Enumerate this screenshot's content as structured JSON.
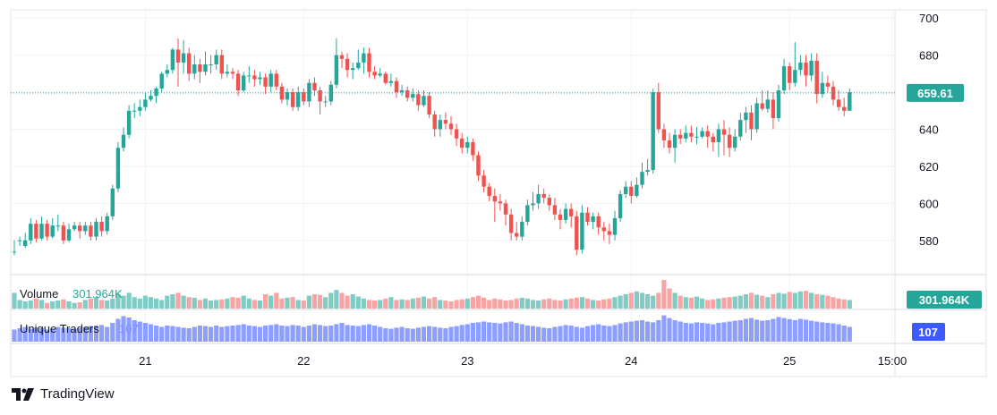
{
  "chart_data": {
    "type": "candlestick",
    "price_axis": {
      "ticks": [
        580,
        600,
        620,
        640,
        660,
        680,
        700
      ],
      "ylim": [
        563,
        703
      ]
    },
    "time_axis": {
      "ticks": [
        "21",
        "22",
        "23",
        "24",
        "25",
        "15:00"
      ]
    },
    "last_price": {
      "label": "659.61",
      "value": 659.61,
      "color": "#26a69a"
    },
    "colors": {
      "up": "#26a69a",
      "down": "#ef5350",
      "volume_up": "#80cbc4",
      "volume_down": "#f7a4a4",
      "traders": "#8c9eff",
      "traders_badge": "#3d5afe"
    },
    "candles": [
      [
        574,
        574,
        580,
        572
      ],
      [
        580,
        580,
        582,
        577
      ],
      [
        577,
        580,
        584,
        576
      ],
      [
        580,
        589,
        592,
        578
      ],
      [
        589,
        581,
        591,
        579
      ],
      [
        581,
        589,
        593,
        580
      ],
      [
        589,
        582,
        591,
        580
      ],
      [
        582,
        588,
        592,
        581
      ],
      [
        588,
        588,
        594,
        585
      ],
      [
        588,
        580,
        590,
        578
      ],
      [
        580,
        586,
        589,
        579
      ],
      [
        586,
        588,
        590,
        585
      ],
      [
        588,
        585,
        590,
        581
      ],
      [
        585,
        588,
        590,
        583
      ],
      [
        588,
        582,
        590,
        580
      ],
      [
        582,
        590,
        592,
        580
      ],
      [
        590,
        585,
        593,
        582
      ],
      [
        585,
        593,
        595,
        583
      ],
      [
        593,
        608,
        610,
        591
      ],
      [
        608,
        630,
        633,
        606
      ],
      [
        630,
        637,
        641,
        628
      ],
      [
        637,
        650,
        653,
        635
      ],
      [
        650,
        650,
        654,
        646
      ],
      [
        650,
        652,
        656,
        647
      ],
      [
        652,
        656,
        660,
        650
      ],
      [
        656,
        658,
        661,
        655
      ],
      [
        658,
        662,
        663,
        654
      ],
      [
        662,
        670,
        671,
        660
      ],
      [
        670,
        672,
        675,
        668
      ],
      [
        672,
        683,
        684,
        670
      ],
      [
        683,
        676,
        689,
        663
      ],
      [
        676,
        681,
        688,
        670
      ],
      [
        681,
        670,
        684,
        666
      ],
      [
        670,
        675,
        680,
        667
      ],
      [
        675,
        671,
        678,
        665
      ],
      [
        671,
        675,
        682,
        669
      ],
      [
        675,
        675,
        680,
        670
      ],
      [
        675,
        680,
        683,
        672
      ],
      [
        680,
        670,
        683,
        667
      ],
      [
        670,
        671,
        675,
        668
      ],
      [
        671,
        670,
        673,
        667
      ],
      [
        670,
        661,
        672,
        658
      ],
      [
        661,
        669,
        671,
        660
      ],
      [
        669,
        669,
        674,
        665
      ],
      [
        669,
        667,
        672,
        663
      ],
      [
        667,
        668,
        671,
        664
      ],
      [
        668,
        663,
        670,
        659
      ],
      [
        663,
        670,
        672,
        660
      ],
      [
        670,
        663,
        672,
        661
      ],
      [
        663,
        656,
        665,
        654
      ],
      [
        656,
        660,
        662,
        653
      ],
      [
        660,
        652,
        662,
        650
      ],
      [
        652,
        660,
        663,
        650
      ],
      [
        660,
        655,
        662,
        653
      ],
      [
        655,
        665,
        667,
        652
      ],
      [
        665,
        661,
        668,
        658
      ],
      [
        661,
        655,
        663,
        648
      ],
      [
        655,
        655,
        658,
        652
      ],
      [
        655,
        664,
        666,
        653
      ],
      [
        664,
        680,
        689,
        662
      ],
      [
        680,
        678,
        682,
        673
      ],
      [
        678,
        672,
        681,
        668
      ],
      [
        672,
        673,
        676,
        667
      ],
      [
        673,
        676,
        683,
        672
      ],
      [
        676,
        681,
        684,
        670
      ],
      [
        681,
        671,
        684,
        668
      ],
      [
        671,
        669,
        674,
        667
      ],
      [
        669,
        670,
        673,
        668
      ],
      [
        670,
        665,
        671,
        664
      ],
      [
        665,
        666,
        670,
        663
      ],
      [
        666,
        660,
        668,
        657
      ],
      [
        660,
        661,
        664,
        658
      ],
      [
        661,
        657,
        663,
        655
      ],
      [
        657,
        659,
        662,
        655
      ],
      [
        659,
        653,
        661,
        650
      ],
      [
        653,
        658,
        661,
        652
      ],
      [
        658,
        648,
        660,
        646
      ],
      [
        648,
        640,
        650,
        636
      ],
      [
        640,
        645,
        648,
        636
      ],
      [
        645,
        643,
        649,
        640
      ],
      [
        643,
        640,
        647,
        637
      ],
      [
        640,
        635,
        643,
        631
      ],
      [
        635,
        630,
        638,
        627
      ],
      [
        630,
        633,
        636,
        627
      ],
      [
        633,
        626,
        635,
        623
      ],
      [
        626,
        615,
        628,
        612
      ],
      [
        615,
        609,
        618,
        606
      ],
      [
        609,
        604,
        611,
        601
      ],
      [
        604,
        601,
        608,
        590
      ],
      [
        601,
        600,
        605,
        596
      ],
      [
        600,
        594,
        602,
        588
      ],
      [
        594,
        584,
        597,
        580
      ],
      [
        584,
        582,
        590,
        580
      ],
      [
        582,
        590,
        593,
        580
      ],
      [
        590,
        599,
        602,
        588
      ],
      [
        599,
        600,
        606,
        596
      ],
      [
        600,
        605,
        610,
        597
      ],
      [
        605,
        603,
        608,
        600
      ],
      [
        603,
        599,
        605,
        596
      ],
      [
        599,
        594,
        603,
        591
      ],
      [
        594,
        591,
        597,
        586
      ],
      [
        591,
        597,
        600,
        589
      ],
      [
        597,
        593,
        600,
        587
      ],
      [
        593,
        575,
        596,
        572
      ],
      [
        575,
        595,
        599,
        573
      ],
      [
        595,
        590,
        598,
        588
      ],
      [
        590,
        593,
        595,
        586
      ],
      [
        593,
        587,
        595,
        583
      ],
      [
        587,
        585,
        590,
        580
      ],
      [
        585,
        583,
        589,
        578
      ],
      [
        583,
        592,
        596,
        580
      ],
      [
        592,
        605,
        607,
        590
      ],
      [
        605,
        609,
        612,
        603
      ],
      [
        609,
        604,
        612,
        600
      ],
      [
        604,
        610,
        614,
        603
      ],
      [
        610,
        617,
        622,
        608
      ],
      [
        617,
        618,
        624,
        615
      ],
      [
        618,
        660,
        662,
        616
      ],
      [
        660,
        640,
        665,
        638
      ],
      [
        640,
        634,
        643,
        630
      ],
      [
        634,
        630,
        638,
        627
      ],
      [
        630,
        637,
        640,
        622
      ],
      [
        637,
        635,
        640,
        632
      ],
      [
        635,
        638,
        642,
        633
      ],
      [
        638,
        636,
        642,
        633
      ],
      [
        636,
        636,
        641,
        632
      ],
      [
        636,
        639,
        641,
        635
      ],
      [
        639,
        636,
        642,
        630
      ],
      [
        636,
        633,
        638,
        628
      ],
      [
        633,
        640,
        643,
        625
      ],
      [
        640,
        637,
        645,
        626
      ],
      [
        637,
        630,
        641,
        625
      ],
      [
        630,
        636,
        640,
        628
      ],
      [
        636,
        645,
        649,
        634
      ],
      [
        645,
        649,
        652,
        638
      ],
      [
        649,
        640,
        653,
        634
      ],
      [
        640,
        654,
        657,
        638
      ],
      [
        654,
        651,
        661,
        650
      ],
      [
        651,
        656,
        661,
        649
      ],
      [
        656,
        646,
        660,
        640
      ],
      [
        646,
        661,
        664,
        644
      ],
      [
        661,
        674,
        678,
        659
      ],
      [
        674,
        665,
        676,
        661
      ],
      [
        665,
        672,
        687,
        663
      ],
      [
        672,
        676,
        680,
        669
      ],
      [
        676,
        669,
        680,
        663
      ],
      [
        669,
        677,
        681,
        666
      ],
      [
        677,
        659,
        681,
        654
      ],
      [
        659,
        665,
        671,
        657
      ],
      [
        665,
        663,
        669,
        660
      ],
      [
        663,
        656,
        666,
        653
      ],
      [
        656,
        652,
        661,
        650
      ],
      [
        652,
        650,
        657,
        647
      ],
      [
        650,
        660,
        662,
        650
      ]
    ],
    "volume": [
      0.55,
      0.3,
      0.25,
      0.28,
      0.35,
      0.3,
      0.2,
      0.25,
      0.28,
      0.32,
      0.25,
      0.2,
      0.22,
      0.3,
      0.35,
      0.4,
      0.3,
      0.28,
      0.35,
      0.5,
      0.45,
      0.55,
      0.4,
      0.35,
      0.45,
      0.4,
      0.35,
      0.3,
      0.45,
      0.5,
      0.55,
      0.45,
      0.4,
      0.38,
      0.3,
      0.35,
      0.28,
      0.3,
      0.32,
      0.35,
      0.4,
      0.38,
      0.45,
      0.35,
      0.3,
      0.28,
      0.5,
      0.45,
      0.55,
      0.35,
      0.38,
      0.4,
      0.3,
      0.28,
      0.45,
      0.5,
      0.48,
      0.4,
      0.55,
      0.65,
      0.55,
      0.45,
      0.5,
      0.42,
      0.35,
      0.3,
      0.28,
      0.3,
      0.35,
      0.4,
      0.3,
      0.32,
      0.3,
      0.35,
      0.38,
      0.42,
      0.35,
      0.4,
      0.3,
      0.28,
      0.25,
      0.3,
      0.32,
      0.35,
      0.4,
      0.45,
      0.38,
      0.3,
      0.35,
      0.32,
      0.28,
      0.3,
      0.35,
      0.38,
      0.35,
      0.3,
      0.28,
      0.32,
      0.35,
      0.3,
      0.28,
      0.32,
      0.35,
      0.38,
      0.4,
      0.35,
      0.3,
      0.28,
      0.32,
      0.35,
      0.4,
      0.45,
      0.5,
      0.55,
      0.6,
      0.55,
      0.5,
      0.45,
      0.55,
      1.0,
      0.7,
      0.55,
      0.45,
      0.4,
      0.38,
      0.42,
      0.35,
      0.3,
      0.32,
      0.35,
      0.38,
      0.4,
      0.42,
      0.45,
      0.5,
      0.55,
      0.48,
      0.45,
      0.4,
      0.5,
      0.55,
      0.52,
      0.58,
      0.55,
      0.6,
      0.62,
      0.55,
      0.5,
      0.48,
      0.45,
      0.4,
      0.35,
      0.32,
      0.3
    ],
    "volume_label": "Volume",
    "volume_value": "301.964K",
    "traders": [
      0.45,
      0.5,
      0.55,
      0.48,
      0.52,
      0.5,
      0.45,
      0.48,
      0.55,
      0.52,
      0.5,
      0.48,
      0.5,
      0.55,
      0.58,
      0.6,
      0.62,
      0.55,
      0.7,
      0.85,
      0.95,
      0.9,
      0.8,
      0.75,
      0.7,
      0.65,
      0.6,
      0.55,
      0.6,
      0.58,
      0.55,
      0.52,
      0.5,
      0.55,
      0.6,
      0.58,
      0.55,
      0.6,
      0.55,
      0.58,
      0.6,
      0.62,
      0.65,
      0.6,
      0.58,
      0.55,
      0.6,
      0.62,
      0.65,
      0.6,
      0.58,
      0.62,
      0.6,
      0.55,
      0.6,
      0.65,
      0.62,
      0.58,
      0.6,
      0.65,
      0.7,
      0.62,
      0.6,
      0.58,
      0.62,
      0.65,
      0.6,
      0.55,
      0.5,
      0.48,
      0.52,
      0.55,
      0.5,
      0.48,
      0.52,
      0.55,
      0.58,
      0.55,
      0.52,
      0.5,
      0.55,
      0.58,
      0.62,
      0.65,
      0.7,
      0.72,
      0.75,
      0.72,
      0.7,
      0.68,
      0.72,
      0.75,
      0.7,
      0.65,
      0.6,
      0.58,
      0.55,
      0.52,
      0.5,
      0.55,
      0.58,
      0.62,
      0.6,
      0.55,
      0.52,
      0.58,
      0.62,
      0.65,
      0.6,
      0.58,
      0.62,
      0.68,
      0.72,
      0.75,
      0.78,
      0.8,
      0.75,
      0.72,
      0.8,
      0.98,
      0.88,
      0.8,
      0.75,
      0.7,
      0.68,
      0.72,
      0.7,
      0.68,
      0.65,
      0.7,
      0.72,
      0.75,
      0.78,
      0.8,
      0.85,
      0.88,
      0.82,
      0.78,
      0.8,
      0.85,
      0.92,
      0.88,
      0.84,
      0.8,
      0.85,
      0.82,
      0.78,
      0.75,
      0.72,
      0.7,
      0.68,
      0.65,
      0.6,
      0.55
    ],
    "traders_label": "Unique Traders",
    "traders_value": "107",
    "brand": "TradingView"
  }
}
